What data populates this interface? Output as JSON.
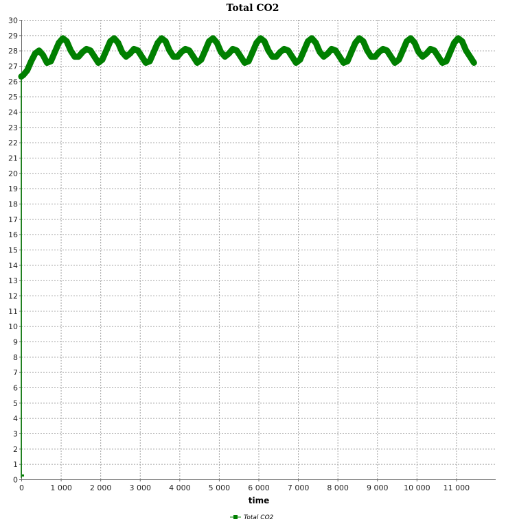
{
  "chart_data": {
    "type": "line",
    "title": "Total CO2",
    "xlabel": "time",
    "ylabel": "",
    "xlim": [
      0,
      12000
    ],
    "ylim": [
      0,
      30
    ],
    "x_ticks": [
      0,
      1000,
      2000,
      3000,
      4000,
      5000,
      6000,
      7000,
      8000,
      9000,
      10000,
      11000
    ],
    "x_tick_labels": [
      "0",
      "1 000",
      "2 000",
      "3 000",
      "4 000",
      "5 000",
      "6 000",
      "7 000",
      "8 000",
      "9 000",
      "10 000",
      "11 000"
    ],
    "y_ticks": [
      0,
      1,
      2,
      3,
      4,
      5,
      6,
      7,
      8,
      9,
      10,
      11,
      12,
      13,
      14,
      15,
      16,
      17,
      18,
      19,
      20,
      21,
      22,
      23,
      24,
      25,
      26,
      27,
      28,
      29,
      30
    ],
    "grid": true,
    "legend_position": "bottom-center",
    "series": [
      {
        "name": "Total CO2",
        "color": "#007f00",
        "x": [
          0,
          0,
          50,
          150,
          250,
          350,
          450,
          550,
          650,
          750,
          850,
          950,
          1050,
          1150,
          1250,
          1350,
          1450,
          1550,
          1650,
          1750,
          1850,
          1950,
          2050,
          2150,
          2250,
          2350,
          2450,
          2550,
          2650,
          2750,
          2850,
          2950,
          3050,
          3150,
          3250,
          3350,
          3450,
          3550,
          3650,
          3750,
          3850,
          3950,
          4050,
          4150,
          4250,
          4350,
          4450,
          4550,
          4650,
          4750,
          4850,
          4950,
          5050,
          5150,
          5250,
          5350,
          5450,
          5550,
          5650,
          5750,
          5850,
          5950,
          6050,
          6150,
          6250,
          6350,
          6450,
          6550,
          6650,
          6750,
          6850,
          6950,
          7050,
          7150,
          7250,
          7350,
          7450,
          7550,
          7650,
          7750,
          7850,
          7950,
          8050,
          8150,
          8250,
          8350,
          8450,
          8550,
          8650,
          8750,
          8850,
          8950,
          9050,
          9150,
          9250,
          9350,
          9450,
          9550,
          9650,
          9750,
          9850,
          9950,
          10050,
          10150,
          10250,
          10350,
          10450,
          10550,
          10650,
          10750,
          10850,
          10950,
          11050,
          11150,
          11250,
          11350,
          11450
        ],
        "y": [
          0.1,
          26.3,
          26.4,
          26.7,
          27.3,
          27.8,
          28.0,
          27.7,
          27.2,
          27.3,
          27.9,
          28.5,
          28.8,
          28.6,
          28.0,
          27.6,
          27.6,
          27.9,
          28.1,
          28.0,
          27.6,
          27.2,
          27.4,
          28.0,
          28.6,
          28.8,
          28.5,
          27.9,
          27.6,
          27.8,
          28.1,
          28.0,
          27.6,
          27.2,
          27.3,
          27.9,
          28.5,
          28.8,
          28.6,
          28.0,
          27.6,
          27.6,
          27.9,
          28.1,
          28.0,
          27.6,
          27.2,
          27.4,
          28.0,
          28.6,
          28.8,
          28.5,
          27.9,
          27.6,
          27.8,
          28.1,
          28.0,
          27.6,
          27.2,
          27.3,
          27.9,
          28.5,
          28.8,
          28.6,
          28.0,
          27.6,
          27.6,
          27.9,
          28.1,
          28.0,
          27.6,
          27.2,
          27.4,
          28.0,
          28.6,
          28.8,
          28.5,
          27.9,
          27.6,
          27.8,
          28.1,
          28.0,
          27.6,
          27.2,
          27.3,
          27.9,
          28.5,
          28.8,
          28.6,
          28.0,
          27.6,
          27.6,
          27.9,
          28.1,
          28.0,
          27.6,
          27.2,
          27.4,
          28.0,
          28.6,
          28.8,
          28.5,
          27.9,
          27.6,
          27.8,
          28.1,
          28.0,
          27.6,
          27.2,
          27.3,
          27.9,
          28.5,
          28.8,
          28.6,
          28.0,
          27.6,
          27.2
        ]
      }
    ]
  }
}
